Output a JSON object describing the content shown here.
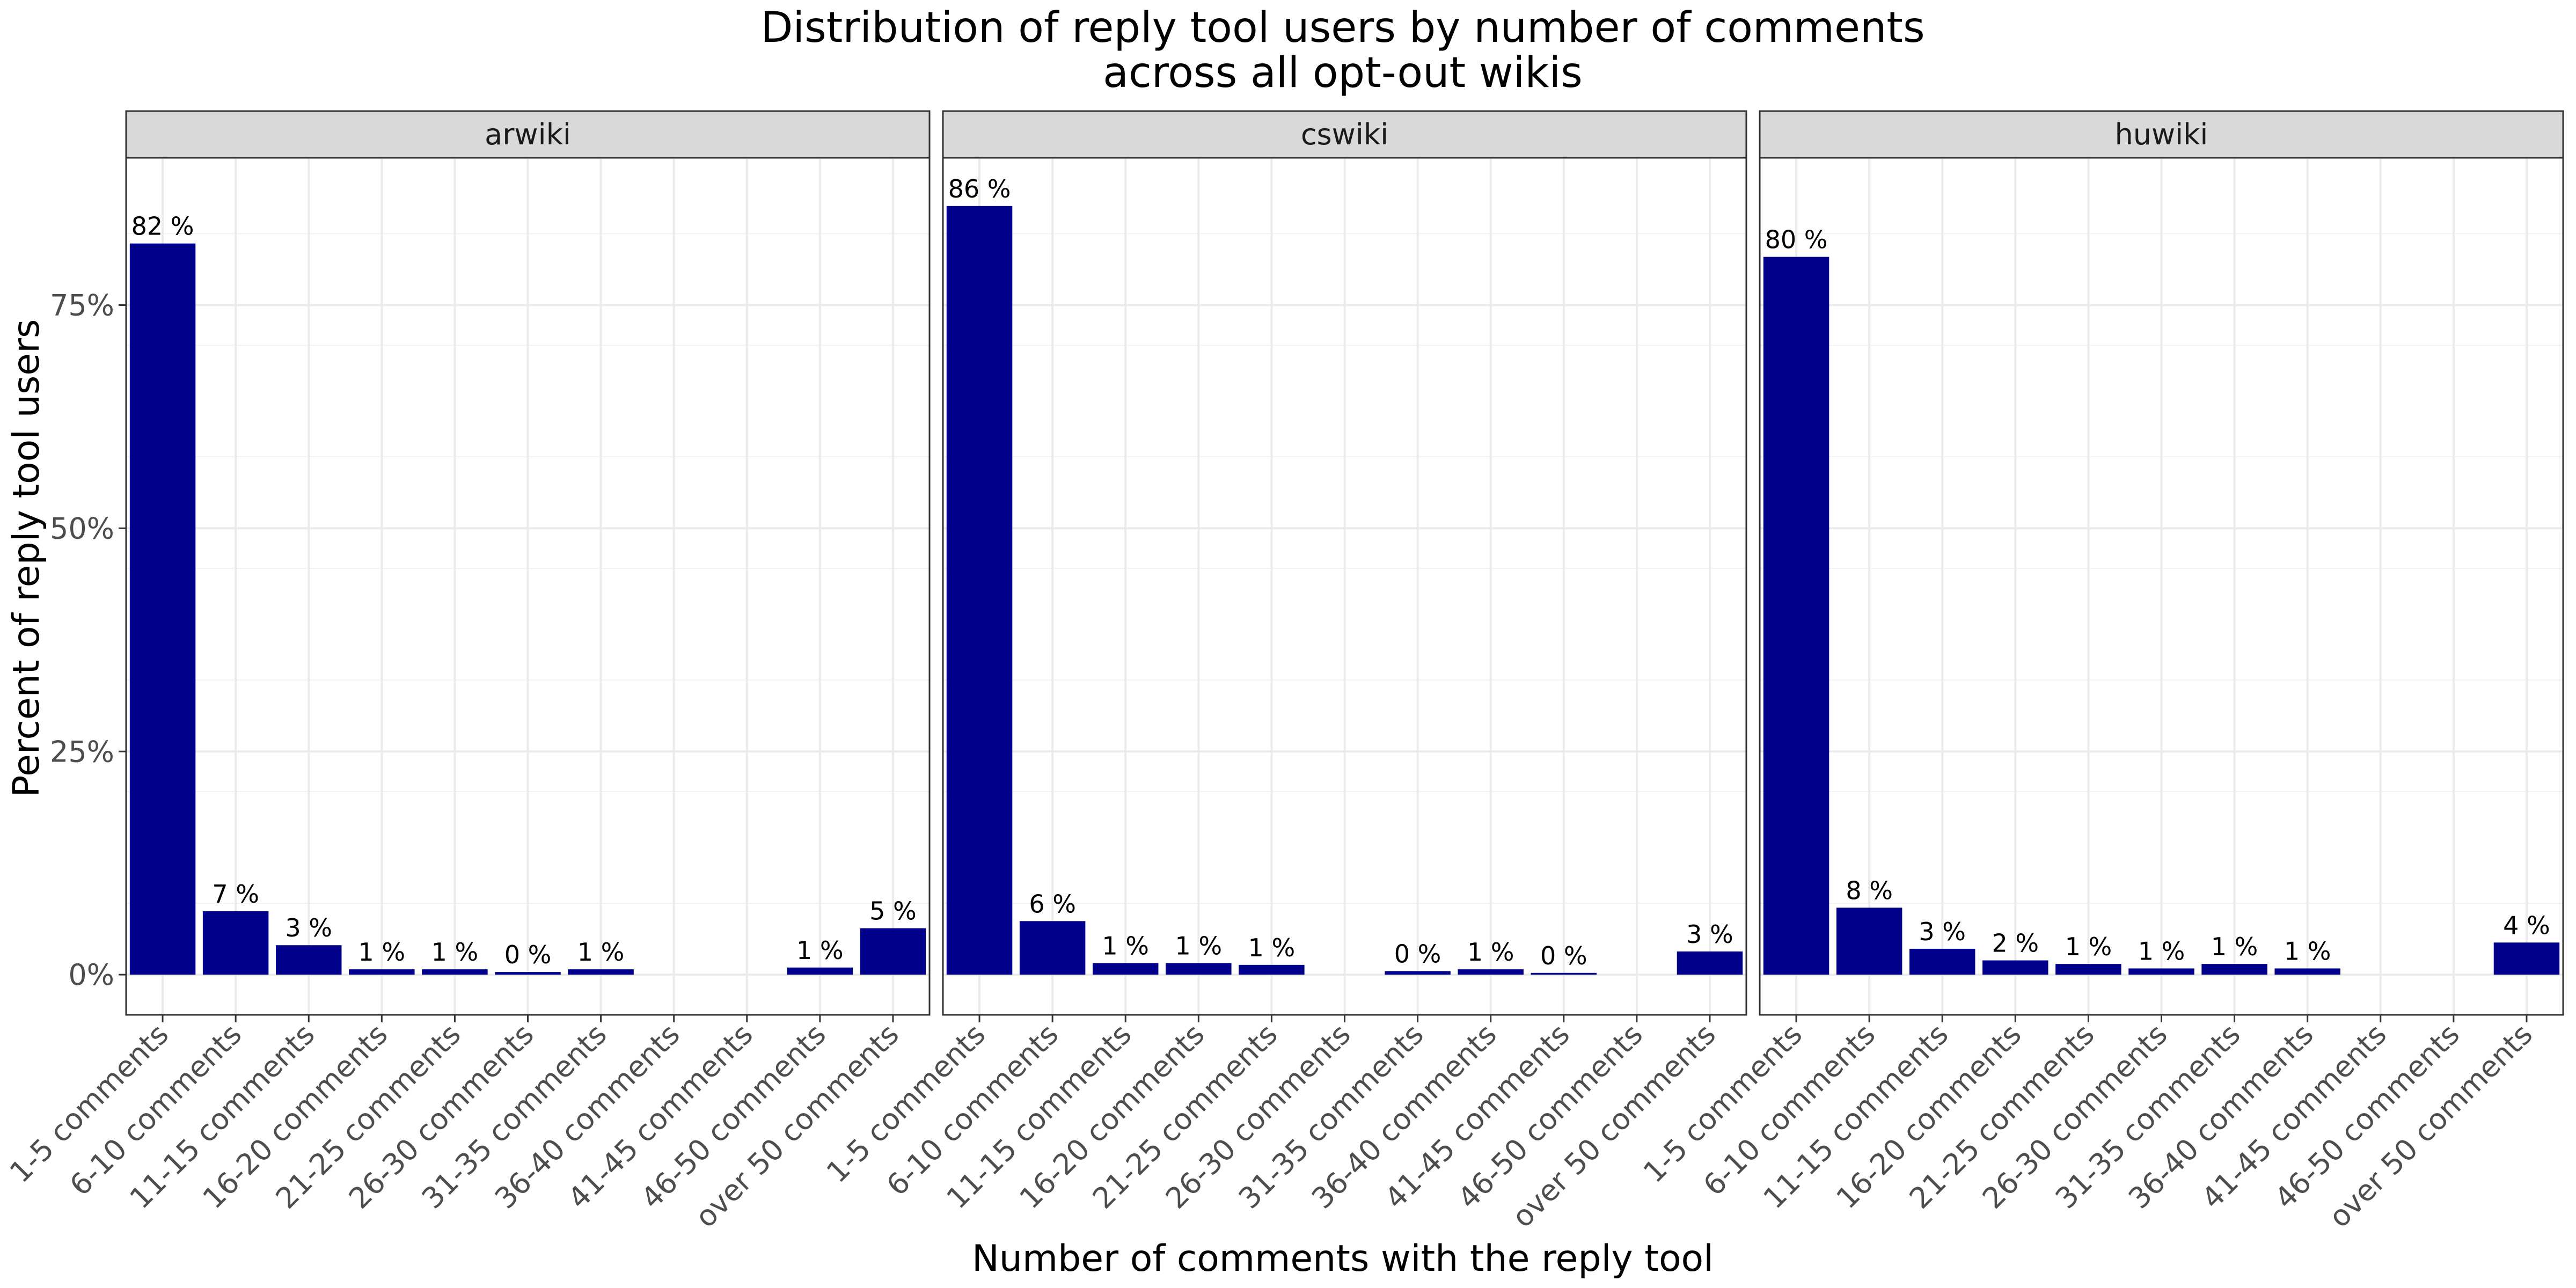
{
  "chart_data": {
    "type": "bar",
    "title": "Distribution of reply tool users by number of comments",
    "subtitle": "across all opt-out wikis",
    "xlabel": "Number of comments with the reply tool",
    "ylabel": "Percent of reply tool users",
    "ylim": [
      -4.5,
      91.5
    ],
    "y_ticks": [
      0,
      25,
      50,
      75
    ],
    "y_tick_labels": [
      "0%",
      "25%",
      "50%",
      "75%"
    ],
    "grid": true,
    "bar_color": "#00008B",
    "categories": [
      "1-5 comments",
      "6-10 comments",
      "11-15 comments",
      "16-20 comments",
      "21-25 comments",
      "26-30 comments",
      "31-35 comments",
      "36-40 comments",
      "41-45 comments",
      "46-50 comments",
      "over 50 comments"
    ],
    "panels": [
      {
        "name": "arwiki",
        "values": [
          81.9,
          7.1,
          3.3,
          0.6,
          0.6,
          0.3,
          0.6,
          null,
          null,
          0.8,
          5.2
        ],
        "labels": [
          "82 %",
          "7 %",
          "3 %",
          "1 %",
          "1 %",
          "0 %",
          "1 %",
          "",
          "",
          "1 %",
          "5 %"
        ]
      },
      {
        "name": "cswiki",
        "values": [
          86.1,
          6.0,
          1.3,
          1.3,
          1.1,
          null,
          0.4,
          0.6,
          0.2,
          null,
          2.6
        ],
        "labels": [
          "86 %",
          "6 %",
          "1 %",
          "1 %",
          "1 %",
          "",
          "0 %",
          "1 %",
          "0 %",
          "",
          "3 %"
        ]
      },
      {
        "name": "huwiki",
        "values": [
          80.4,
          7.5,
          2.9,
          1.6,
          1.2,
          0.7,
          1.2,
          0.7,
          null,
          null,
          3.6
        ],
        "labels": [
          "80 %",
          "8 %",
          "3 %",
          "2 %",
          "1 %",
          "1 %",
          "1 %",
          "1 %",
          "",
          "",
          "4 %"
        ]
      }
    ]
  }
}
